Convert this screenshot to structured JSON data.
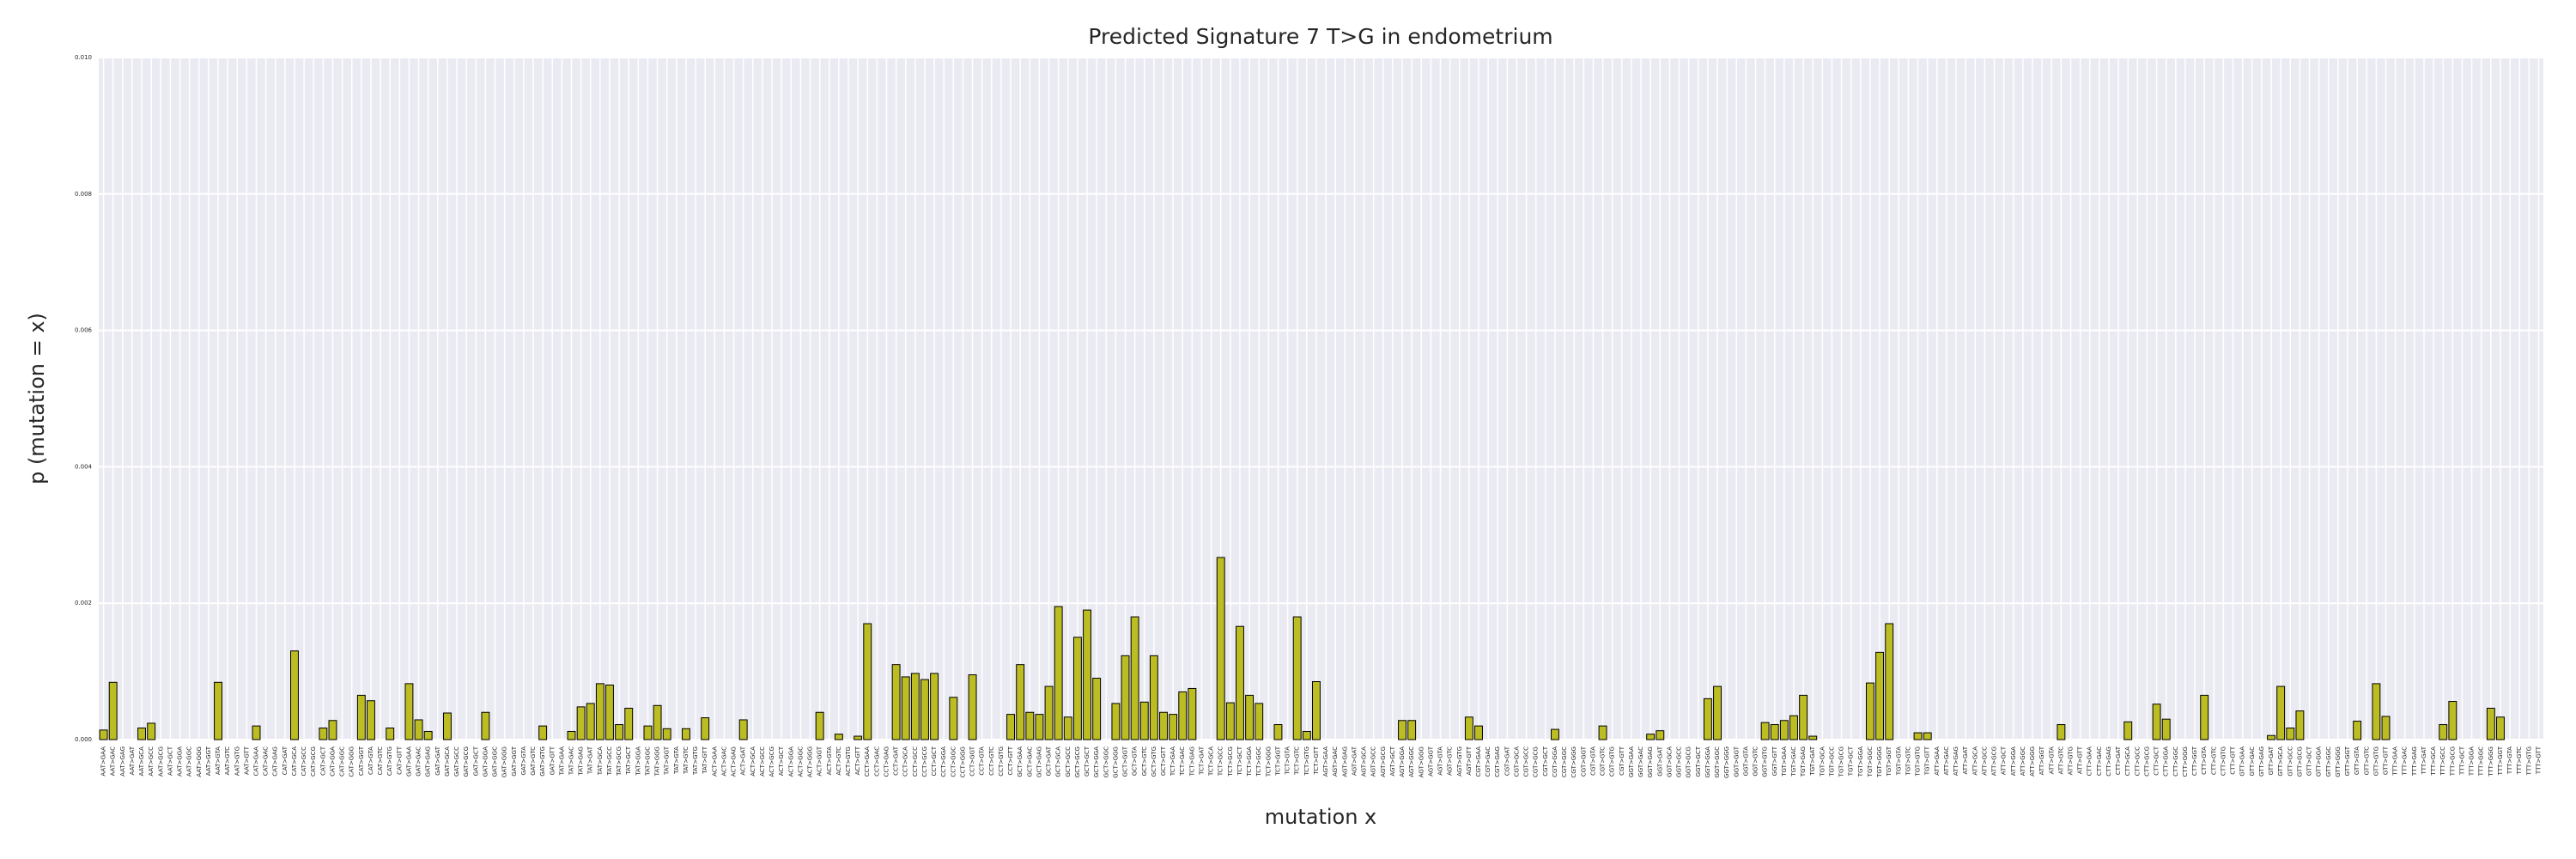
{
  "chart_data": {
    "type": "bar",
    "title": "Predicted Signature 7 T>G in endometrium",
    "x_label": "mutation x",
    "y_label": "p (mutation = x)",
    "color": "#bcbd22",
    "grid": true,
    "ylim": [
      0,
      0.01
    ],
    "yticks": [
      {
        "value": 0,
        "label": "0.000"
      },
      0.002,
      0.004,
      0.006,
      0.008,
      {
        "value": 0.01,
        "label": "0.010"
      }
    ],
    "categories": [
      "AAT>GAA",
      "AAT>GAC",
      "AAT>GAG",
      "AAT>GAT",
      "AAT>GCA",
      "AAT>GCC",
      "AAT>GCG",
      "AAT>GCT",
      "AAT>GGA",
      "AAT>GGC",
      "AAT>GGG",
      "AAT>GGT",
      "AAT>GTA",
      "AAT>GTC",
      "AAT>GTG",
      "AAT>GTT",
      "CAT>GAA",
      "CAT>GAC",
      "CAT>GAG",
      "CAT>GAT",
      "CAT>GCA",
      "CAT>GCC",
      "CAT>GCG",
      "CAT>GCT",
      "CAT>GGA",
      "CAT>GGC",
      "CAT>GGG",
      "CAT>GGT",
      "CAT>GTA",
      "CAT>GTC",
      "CAT>GTG",
      "CAT>GTT",
      "GAT>GAA",
      "GAT>GAC",
      "GAT>GAG",
      "GAT>GAT",
      "GAT>GCA",
      "GAT>GCC",
      "GAT>GCG",
      "GAT>GCT",
      "GAT>GGA",
      "GAT>GGC",
      "GAT>GGG",
      "GAT>GGT",
      "GAT>GTA",
      "GAT>GTC",
      "GAT>GTG",
      "GAT>GTT",
      "TAT>GAA",
      "TAT>GAC",
      "TAT>GAG",
      "TAT>GAT",
      "TAT>GCA",
      "TAT>GCC",
      "TAT>GCG",
      "TAT>GCT",
      "TAT>GGA",
      "TAT>GGC",
      "TAT>GGG",
      "TAT>GGT",
      "TAT>GTA",
      "TAT>GTC",
      "TAT>GTG",
      "TAT>GTT",
      "ACT>GAA",
      "ACT>GAC",
      "ACT>GAG",
      "ACT>GAT",
      "ACT>GCA",
      "ACT>GCC",
      "ACT>GCG",
      "ACT>GCT",
      "ACT>GGA",
      "ACT>GGC",
      "ACT>GGG",
      "ACT>GGT",
      "ACT>GTA",
      "ACT>GTC",
      "ACT>GTG",
      "ACT>GTT",
      "CCT>GAA",
      "CCT>GAC",
      "CCT>GAG",
      "CCT>GAT",
      "CCT>GCA",
      "CCT>GCC",
      "CCT>GCG",
      "CCT>GCT",
      "CCT>GGA",
      "CCT>GGC",
      "CCT>GGG",
      "CCT>GGT",
      "CCT>GTA",
      "CCT>GTC",
      "CCT>GTG",
      "CCT>GTT",
      "GCT>GAA",
      "GCT>GAC",
      "GCT>GAG",
      "GCT>GAT",
      "GCT>GCA",
      "GCT>GCC",
      "GCT>GCG",
      "GCT>GCT",
      "GCT>GGA",
      "GCT>GGC",
      "GCT>GGG",
      "GCT>GGT",
      "GCT>GTA",
      "GCT>GTC",
      "GCT>GTG",
      "GCT>GTT",
      "TCT>GAA",
      "TCT>GAC",
      "TCT>GAG",
      "TCT>GAT",
      "TCT>GCA",
      "TCT>GCC",
      "TCT>GCG",
      "TCT>GCT",
      "TCT>GGA",
      "TCT>GGC",
      "TCT>GGG",
      "TCT>GGT",
      "TCT>GTA",
      "TCT>GTC",
      "TCT>GTG",
      "TCT>GTT",
      "AGT>GAA",
      "AGT>GAC",
      "AGT>GAG",
      "AGT>GAT",
      "AGT>GCA",
      "AGT>GCC",
      "AGT>GCG",
      "AGT>GCT",
      "AGT>GGA",
      "AGT>GGC",
      "AGT>GGG",
      "AGT>GGT",
      "AGT>GTA",
      "AGT>GTC",
      "AGT>GTG",
      "AGT>GTT",
      "CGT>GAA",
      "CGT>GAC",
      "CGT>GAG",
      "CGT>GAT",
      "CGT>GCA",
      "CGT>GCC",
      "CGT>GCG",
      "CGT>GCT",
      "CGT>GGA",
      "CGT>GGC",
      "CGT>GGG",
      "CGT>GGT",
      "CGT>GTA",
      "CGT>GTC",
      "CGT>GTG",
      "CGT>GTT",
      "GGT>GAA",
      "GGT>GAC",
      "GGT>GAG",
      "GGT>GAT",
      "GGT>GCA",
      "GGT>GCC",
      "GGT>GCG",
      "GGT>GCT",
      "GGT>GGA",
      "GGT>GGC",
      "GGT>GGG",
      "GGT>GGT",
      "GGT>GTA",
      "GGT>GTC",
      "GGT>GTG",
      "GGT>GTT",
      "TGT>GAA",
      "TGT>GAC",
      "TGT>GAG",
      "TGT>GAT",
      "TGT>GCA",
      "TGT>GCC",
      "TGT>GCG",
      "TGT>GCT",
      "TGT>GGA",
      "TGT>GGC",
      "TGT>GGG",
      "TGT>GGT",
      "TGT>GTA",
      "TGT>GTC",
      "TGT>GTG",
      "TGT>GTT",
      "ATT>GAA",
      "ATT>GAC",
      "ATT>GAG",
      "ATT>GAT",
      "ATT>GCA",
      "ATT>GCC",
      "ATT>GCG",
      "ATT>GCT",
      "ATT>GGA",
      "ATT>GGC",
      "ATT>GGG",
      "ATT>GGT",
      "ATT>GTA",
      "ATT>GTC",
      "ATT>GTG",
      "ATT>GTT",
      "CTT>GAA",
      "CTT>GAC",
      "CTT>GAG",
      "CTT>GAT",
      "CTT>GCA",
      "CTT>GCC",
      "CTT>GCG",
      "CTT>GCT",
      "CTT>GGA",
      "CTT>GGC",
      "CTT>GGG",
      "CTT>GGT",
      "CTT>GTA",
      "CTT>GTC",
      "CTT>GTG",
      "CTT>GTT",
      "GTT>GAA",
      "GTT>GAC",
      "GTT>GAG",
      "GTT>GAT",
      "GTT>GCA",
      "GTT>GCC",
      "GTT>GCG",
      "GTT>GCT",
      "GTT>GGA",
      "GTT>GGC",
      "GTT>GGG",
      "GTT>GGT",
      "GTT>GTA",
      "GTT>GTC",
      "GTT>GTG",
      "GTT>GTT",
      "TTT>GAA",
      "TTT>GAC",
      "TTT>GAG",
      "TTT>GAT",
      "TTT>GCA",
      "TTT>GCC",
      "TTT>GCG",
      "TTT>GCT",
      "TTT>GGA",
      "TTT>GGC",
      "TTT>GGG",
      "TTT>GGT",
      "TTT>GTA",
      "TTT>GTC",
      "TTT>GTG",
      "TTT>GTT"
    ],
    "values": [
      0.00014,
      0.00084,
      0,
      0,
      0.00017,
      0.00024,
      0,
      0,
      0,
      0,
      0,
      0,
      0.00084,
      0,
      0,
      0,
      0.0002,
      0,
      0,
      0,
      0.0013,
      0,
      0,
      0.00017,
      0.00028,
      0,
      0,
      0.00065,
      0.00057,
      0,
      0.00017,
      0,
      0.00082,
      0.00029,
      0.00012,
      0,
      0.00039,
      0,
      0,
      0,
      0.0004,
      0,
      0,
      0,
      0,
      0,
      0.0002,
      0,
      0,
      0.00012,
      0.00048,
      0.00053,
      0.00082,
      0.0008,
      0.00022,
      0.00046,
      0,
      0.0002,
      0.0005,
      0.00016,
      0,
      0.00016,
      0,
      0.00032,
      0,
      0,
      0,
      0.00029,
      0,
      0,
      0,
      0,
      0,
      0,
      0,
      0.0004,
      0,
      8e-05,
      0,
      5e-05,
      0.0017,
      0,
      0,
      0.0011,
      0.00092,
      0.00097,
      0.00088,
      0.00097,
      0,
      0.00062,
      0,
      0.00095,
      0,
      0,
      0,
      0.00037,
      0.0011,
      0.0004,
      0.00037,
      0.00078,
      0.00195,
      0.00033,
      0.0015,
      0.0019,
      0.0009,
      0,
      0.00053,
      0.00123,
      0.0018,
      0.00055,
      0.00123,
      0.0004,
      0.00037,
      0.0007,
      0.00075,
      0,
      0,
      0.00267,
      0.00054,
      0.00166,
      0.00065,
      0.00053,
      0,
      0.00022,
      0,
      0.0018,
      0.00012,
      0.00085,
      0,
      0,
      0,
      0,
      0,
      0,
      0,
      0,
      0.00028,
      0.00028,
      0,
      0,
      0,
      0,
      0,
      0.00033,
      0.0002,
      0,
      0,
      0,
      0,
      0,
      0,
      0,
      0.00015,
      0,
      0,
      0,
      0,
      0.0002,
      0,
      0,
      0,
      0,
      8e-05,
      0.00013,
      0,
      0,
      0,
      0,
      0.0006,
      0.00078,
      0,
      0,
      0,
      0,
      0.00025,
      0.00022,
      0.00028,
      0.00035,
      0.00065,
      5e-05,
      0,
      0,
      0,
      0,
      0,
      0.00083,
      0.00128,
      0.0017,
      0,
      0,
      0.0001,
      0.0001,
      0,
      0,
      0,
      0,
      0,
      0,
      0,
      0,
      0,
      0,
      0,
      0,
      0,
      0.00022,
      0,
      0,
      0,
      0,
      0,
      0,
      0.00026,
      0,
      0,
      0.00052,
      0.0003,
      0,
      0,
      0,
      0.00065,
      0,
      0,
      0,
      0,
      0,
      0,
      6e-05,
      0.00078,
      0.00017,
      0.00042,
      0,
      0,
      0,
      0,
      0,
      0.00027,
      0,
      0.00082,
      0.00034,
      0,
      0,
      0,
      0,
      0,
      0.00022,
      0.00056,
      0,
      0,
      0,
      0.00046,
      0.00033,
      0,
      0,
      0,
      0
    ]
  }
}
